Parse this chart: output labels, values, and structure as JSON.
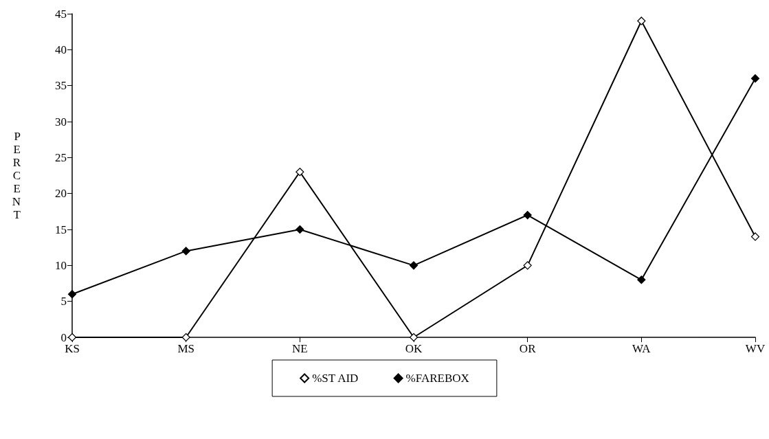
{
  "chart_data": {
    "type": "line",
    "ylabel": "PERCENT",
    "categories": [
      "KS",
      "MS",
      "NE",
      "OK",
      "OR",
      "WA",
      "WV"
    ],
    "series": [
      {
        "name": "%ST AID",
        "color": "#000000",
        "marker": "diamond",
        "values": [
          0,
          0,
          23,
          0,
          10,
          44,
          14
        ]
      },
      {
        "name": "%FAREBOX",
        "color": "#000000",
        "marker": "diamond",
        "values": [
          6,
          12,
          15,
          10,
          17,
          8,
          36
        ]
      }
    ],
    "ylim": [
      0,
      45
    ],
    "yticks": [
      0,
      5,
      10,
      15,
      20,
      25,
      30,
      35,
      40,
      45
    ],
    "grid": false,
    "legend": "bottom",
    "line_style": "solid"
  }
}
